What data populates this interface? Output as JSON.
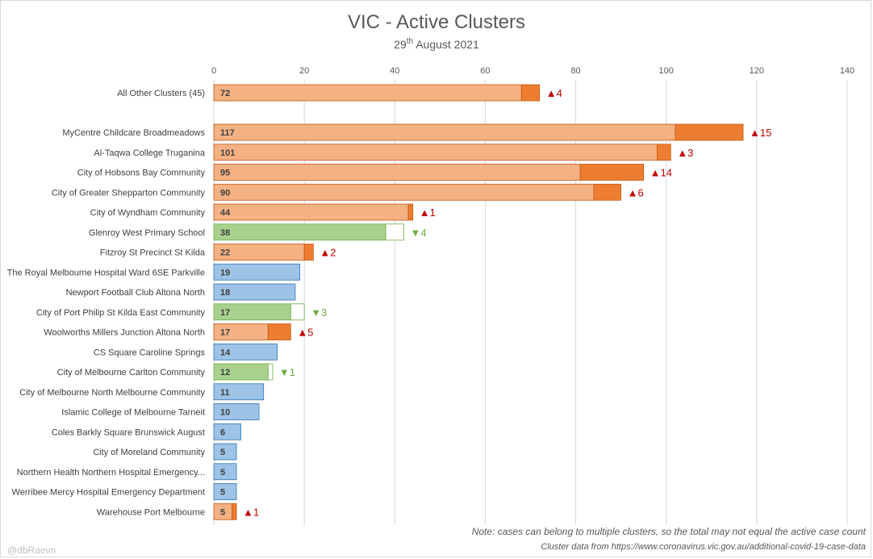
{
  "chart_data": {
    "type": "bar",
    "orientation": "horizontal",
    "title": "VIC - Active Clusters",
    "subtitle": {
      "day": "29",
      "suffix": "th",
      "rest": " August 2021"
    },
    "xlim": [
      0,
      140
    ],
    "xticks": [
      0,
      20,
      40,
      60,
      80,
      100,
      120,
      140
    ],
    "grid": true,
    "note": "Note: cases can belong to multiple clusters, so the total may not equal the active case count",
    "source": "Cluster data from https://www.coronavirus.vic.gov.au/additional-covid-19-case-data",
    "watermark": "@dbRaevn",
    "colors": {
      "up_base": "#f4b183",
      "up_increase": "#ed7d31",
      "up_edge": "#c55a11",
      "down_fill": "#a9d18e",
      "down_edge": "#70ad47",
      "flat_fill": "#9dc3e6",
      "flat_edge": "#2e75b6",
      "arrow_up": "#c00000",
      "arrow_down": "#70ad47",
      "grid": "#d9d9d9"
    },
    "bars": [
      {
        "label": "All Other Clusters (45)",
        "value": 72,
        "change": 4,
        "direction": "up",
        "change_text": "▲4"
      },
      {
        "label": "MyCentre Childcare Broadmeadows",
        "value": 117,
        "change": 15,
        "direction": "up",
        "change_text": "▲15"
      },
      {
        "label": "Al-Taqwa College Truganina",
        "value": 101,
        "change": 3,
        "direction": "up",
        "change_text": "▲3"
      },
      {
        "label": "City of Hobsons Bay Community",
        "value": 95,
        "change": 14,
        "direction": "up",
        "change_text": "▲14"
      },
      {
        "label": "City of Greater Shepparton Community",
        "value": 90,
        "change": 6,
        "direction": "up",
        "change_text": "▲6"
      },
      {
        "label": "City of Wyndham Community",
        "value": 44,
        "change": 1,
        "direction": "up",
        "change_text": "▲1"
      },
      {
        "label": "Glenroy West Primary School",
        "value": 38,
        "change": 4,
        "direction": "down",
        "change_text": "▼4"
      },
      {
        "label": "Fitzroy St Precinct St Kilda",
        "value": 22,
        "change": 2,
        "direction": "up",
        "change_text": "▲2"
      },
      {
        "label": "The Royal Melbourne Hospital Ward 6SE Parkville",
        "value": 19,
        "change": 0,
        "direction": "none",
        "change_text": ""
      },
      {
        "label": "Newport Football Club Altona North",
        "value": 18,
        "change": 0,
        "direction": "none",
        "change_text": ""
      },
      {
        "label": "City of Port Philip St Kilda East Community",
        "value": 17,
        "change": 3,
        "direction": "down",
        "change_text": "▼3"
      },
      {
        "label": "Woolworths Millers Junction Altona North",
        "value": 17,
        "change": 5,
        "direction": "up",
        "change_text": "▲5"
      },
      {
        "label": "CS Square Caroline Springs",
        "value": 14,
        "change": 0,
        "direction": "none",
        "change_text": ""
      },
      {
        "label": "City of Melbourne Carlton Community",
        "value": 12,
        "change": 1,
        "direction": "down",
        "change_text": "▼1"
      },
      {
        "label": "City of Melbourne North Melbourne Community",
        "value": 11,
        "change": 0,
        "direction": "none",
        "change_text": ""
      },
      {
        "label": "Islamic College of Melbourne Tarneit",
        "value": 10,
        "change": 0,
        "direction": "none",
        "change_text": ""
      },
      {
        "label": "Coles Barkly Square Brunswick August",
        "value": 6,
        "change": 0,
        "direction": "none",
        "change_text": ""
      },
      {
        "label": "City of Moreland Community",
        "value": 5,
        "change": 0,
        "direction": "none",
        "change_text": ""
      },
      {
        "label": "Northern Health Northern Hospital Emergency...",
        "value": 5,
        "change": 0,
        "direction": "none",
        "change_text": ""
      },
      {
        "label": "Werribee Mercy Hospital Emergency Department",
        "value": 5,
        "change": 0,
        "direction": "none",
        "change_text": ""
      },
      {
        "label": "Warehouse Port Melbourne",
        "value": 5,
        "change": 1,
        "direction": "up",
        "change_text": "▲1"
      }
    ]
  }
}
